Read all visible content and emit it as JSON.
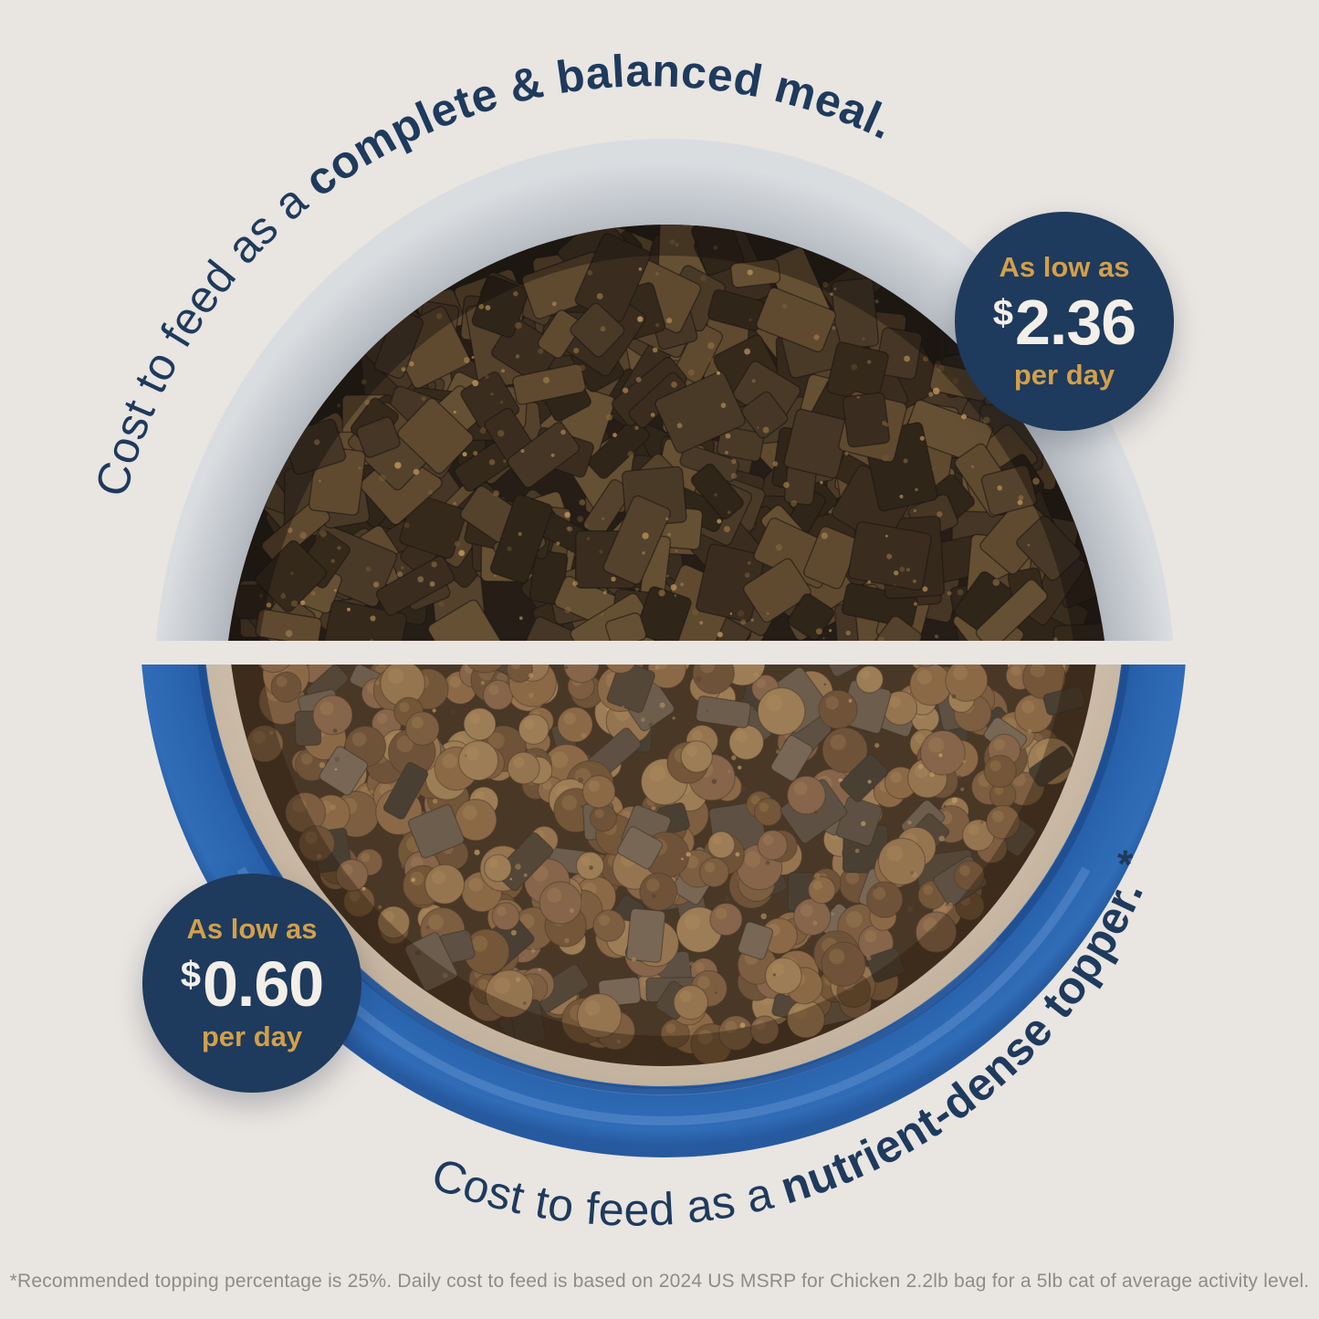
{
  "background": "#e9e5e1",
  "colors": {
    "navy": "#1e3a5d",
    "gold": "#d2a04a",
    "cream": "#f3efe8",
    "bowl_blue": "#2a64ae",
    "bowl_gray": "#c2c6cc"
  },
  "top_section": {
    "caption": {
      "regular": "Cost to feed as a",
      "bold": "complete & balanced meal."
    },
    "badge": {
      "prefix": "As low as",
      "currency": "$",
      "amount": "2.36",
      "suffix": "per day"
    }
  },
  "bottom_section": {
    "caption": {
      "regular": "Cost to feed as a",
      "bold": "nutrient-dense topper.",
      "note_mark": "*"
    },
    "badge": {
      "prefix": "As low as",
      "currency": "$",
      "amount": "0.60",
      "suffix": "per day"
    }
  },
  "footnote": "*Recommended topping percentage is 25%. Daily cost to feed is based on 2024 US MSRP for Chicken 2.2lb bag for a 5lb cat of average activity level."
}
